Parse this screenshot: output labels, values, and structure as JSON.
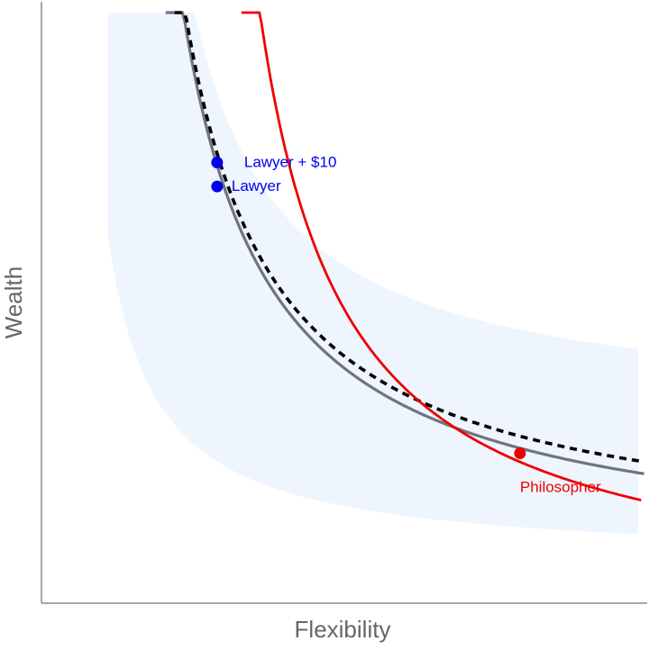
{
  "chart_data": {
    "type": "line",
    "xlabel": "Flexibility",
    "ylabel": "Wealth",
    "xlim": [
      0,
      10
    ],
    "ylim": [
      0,
      10
    ],
    "grid": false,
    "legend": "none",
    "band": {
      "description": "shaded region between two hyperbolic bounds",
      "color": "#eef5fd",
      "lower": {
        "k": 4.32,
        "x0": 0.3,
        "y0": 0.7
      },
      "upper": {
        "k": 10.0,
        "x0": 1.05,
        "y0": 3.1
      },
      "x_range": [
        1.1,
        9.85
      ]
    },
    "series": [
      {
        "id": "lawyer-curve",
        "style": "solid",
        "color": "#6f7480",
        "width": 3.2,
        "k": 13.2,
        "x0": 0.9,
        "y0": 0.7,
        "x_range": [
          2.05,
          9.95
        ]
      },
      {
        "id": "lawyer-plus-curve",
        "style": "dashed",
        "color": "#000000",
        "width": 3.6,
        "k": 13.2,
        "x0": 0.9,
        "y0": 0.9,
        "x_range": [
          2.2,
          9.95
        ]
      },
      {
        "id": "philosopher-curve",
        "style": "solid",
        "color": "#ee0000",
        "width": 2.8,
        "k": 14.0,
        "x0": 2.2,
        "y0": -0.1,
        "x_range": [
          3.3,
          9.9
        ]
      }
    ],
    "points": [
      {
        "label": "Lawyer + $10",
        "x": 2.9,
        "y": 7.35,
        "color": "#0000ee"
      },
      {
        "label": "Lawyer",
        "x": 2.9,
        "y": 6.95,
        "color": "#0000ee"
      },
      {
        "label": "Philosopher",
        "x": 7.9,
        "y": 2.5,
        "color": "#ee0000"
      }
    ]
  }
}
